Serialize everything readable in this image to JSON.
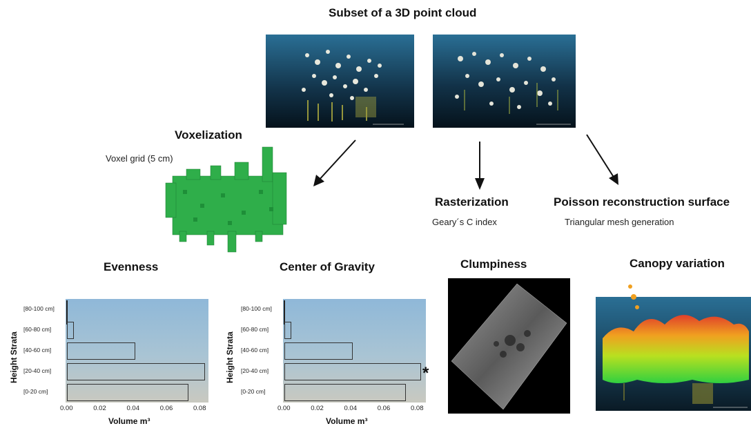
{
  "title": "Subset of a 3D point cloud",
  "voxelization": {
    "title": "Voxelization",
    "grid_label": "Voxel grid (5 cm)"
  },
  "rasterization": {
    "title": "Rasterization",
    "subtitle": "Geary´s C index"
  },
  "poisson": {
    "title": "Poisson reconstruction surface",
    "subtitle": "Triangular mesh generation"
  },
  "panels": {
    "evenness": "Evenness",
    "center_of_gravity": "Center of Gravity",
    "clumpiness": "Clumpiness",
    "canopy_variation": "Canopy variation"
  },
  "chart_data": [
    {
      "type": "bar",
      "orientation": "horizontal",
      "title": "Evenness",
      "categories": [
        "[80-100 cm]",
        "[60-80 cm]",
        "[40-60 cm]",
        "[20-40 cm]",
        "[0-20 cm]"
      ],
      "values": [
        0.0,
        0.004,
        0.041,
        0.083,
        0.073
      ],
      "xlabel": "Volume m³",
      "ylabel": "Height Strata",
      "xticks": [
        "0.00",
        "0.02",
        "0.04",
        "0.06",
        "0.08"
      ],
      "xlim": [
        0,
        0.085
      ],
      "grid": false
    },
    {
      "type": "bar",
      "orientation": "horizontal",
      "title": "Center of Gravity",
      "categories": [
        "[80-100 cm]",
        "[60-80 cm]",
        "[40-60 cm]",
        "[20-40 cm]",
        "[0-20 cm]"
      ],
      "values": [
        0.0,
        0.004,
        0.041,
        0.082,
        0.073
      ],
      "xlabel": "Volume m³",
      "ylabel": "Height Strata",
      "xticks": [
        "0.00",
        "0.02",
        "0.04",
        "0.06",
        "0.08"
      ],
      "xlim": [
        0,
        0.085
      ],
      "marker": "*",
      "marker_category": "[20-40 cm]",
      "grid": false
    }
  ],
  "colors": {
    "voxel_green": "#2fae4a",
    "point_cloud_bg": "#1b4d66",
    "clump_bg": "#000000"
  }
}
